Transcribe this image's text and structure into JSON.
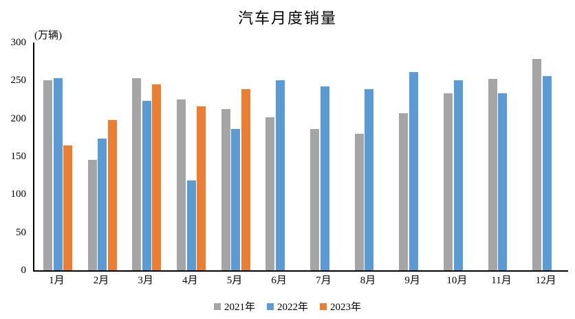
{
  "chart_data": {
    "type": "bar",
    "title": "汽车月度销量",
    "ylabel": "(万辆)",
    "xlabel": "",
    "categories": [
      "1月",
      "2月",
      "3月",
      "4月",
      "5月",
      "6月",
      "7月",
      "8月",
      "9月",
      "10月",
      "11月",
      "12月"
    ],
    "series": [
      {
        "name": "2021年",
        "color": "#A5A5A5",
        "values": [
          250.3,
          145.5,
          252.6,
          225.2,
          212.8,
          201.5,
          186.4,
          179.9,
          206.7,
          233.3,
          252.2,
          278.6
        ]
      },
      {
        "name": "2022年",
        "color": "#5B9BD5",
        "values": [
          253.1,
          173.7,
          223.4,
          118.1,
          186.2,
          250.2,
          242.0,
          238.3,
          261.0,
          250.5,
          232.8,
          255.6
        ]
      },
      {
        "name": "2023年",
        "color": "#ED7D31",
        "values": [
          164.9,
          197.6,
          245.1,
          215.9,
          238.2,
          null,
          null,
          null,
          null,
          null,
          null,
          null
        ]
      }
    ],
    "ylim": [
      0,
      300
    ],
    "yticks": [
      0,
      50,
      100,
      150,
      200,
      250,
      300
    ],
    "grid": false,
    "legend_position": "bottom",
    "axis_color": "#000000",
    "text_color": "#000000"
  }
}
